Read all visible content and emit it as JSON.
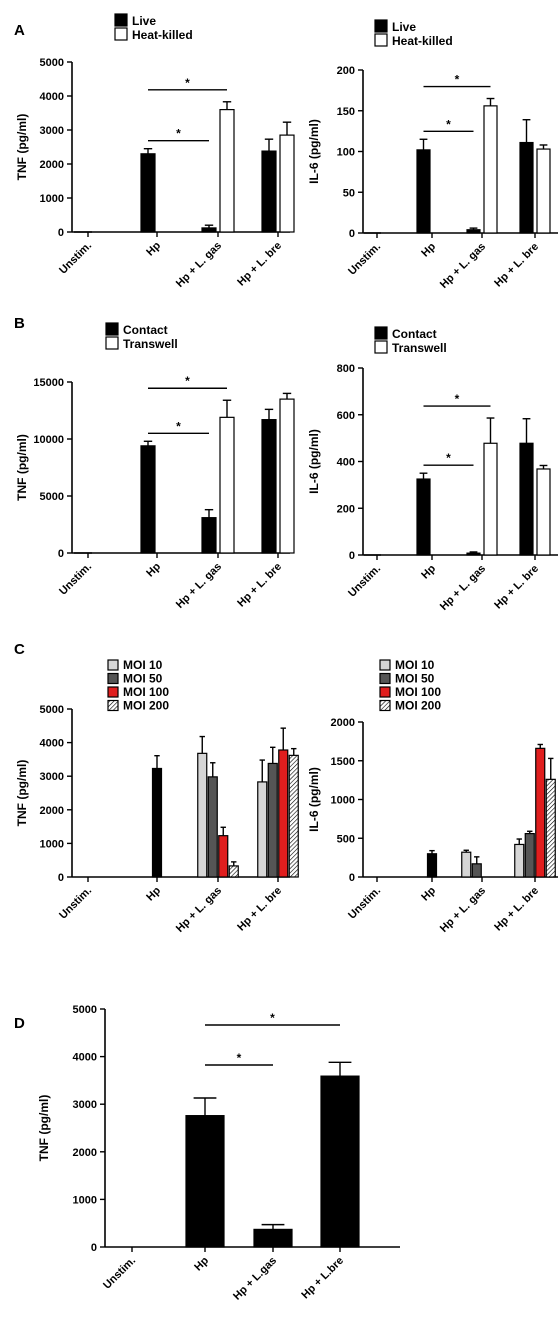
{
  "panel_labels": [
    "A",
    "B",
    "C",
    "D"
  ],
  "colors": {
    "black": "#000000",
    "white": "#ffffff",
    "moi10": "#d6d6d6",
    "moi50": "#555555",
    "moi100": "#e01e1e",
    "moi200": "hatched"
  },
  "chart_data": [
    {
      "panel": "A",
      "type": "bar",
      "ylabel": "TNF (pg/ml)",
      "ylim": [
        0,
        5000
      ],
      "yticks": [
        0,
        1000,
        2000,
        3000,
        4000,
        5000
      ],
      "categories": [
        "Unstim.",
        "Hp",
        "Hp + L. gas",
        "Hp + L. bre"
      ],
      "legend": "top-left",
      "series": [
        {
          "name": "Live",
          "color": "black",
          "values": [
            0,
            2300,
            120,
            2380
          ],
          "errors": [
            0,
            150,
            80,
            350
          ]
        },
        {
          "name": "Heat-killed",
          "color": "white",
          "values": [
            0,
            0,
            3600,
            2850
          ],
          "errors": [
            0,
            0,
            230,
            380
          ]
        }
      ],
      "significance": [
        {
          "from": [
            1,
            0
          ],
          "to": [
            2,
            0
          ],
          "label": "*"
        },
        {
          "from": [
            1,
            0
          ],
          "to": [
            2,
            1
          ],
          "label": "*"
        }
      ]
    },
    {
      "panel": "A",
      "type": "bar",
      "ylabel": "IL-6 (pg/ml)",
      "ylim": [
        0,
        200
      ],
      "yticks": [
        0,
        50,
        100,
        150,
        200
      ],
      "categories": [
        "Unstim.",
        "Hp",
        "Hp + L. gas",
        "Hp + L. bre"
      ],
      "legend": "top-left",
      "series": [
        {
          "name": "Live",
          "color": "black",
          "values": [
            0,
            102,
            4,
            111
          ],
          "errors": [
            0,
            13,
            2,
            28
          ]
        },
        {
          "name": "Heat-killed",
          "color": "white",
          "values": [
            0,
            0,
            156,
            103
          ],
          "errors": [
            0,
            0,
            9,
            5
          ]
        }
      ],
      "significance": [
        {
          "from": [
            1,
            0
          ],
          "to": [
            2,
            0
          ],
          "label": "*"
        },
        {
          "from": [
            1,
            0
          ],
          "to": [
            2,
            1
          ],
          "label": "*"
        }
      ]
    },
    {
      "panel": "B",
      "type": "bar",
      "ylabel": "TNF (pg/ml)",
      "ylim": [
        0,
        15000
      ],
      "yticks": [
        0,
        5000,
        10000,
        15000
      ],
      "categories": [
        "Unstim.",
        "Hp",
        "Hp + L. gas",
        "Hp + L. bre"
      ],
      "legend": "top-left",
      "series": [
        {
          "name": "Contact",
          "color": "black",
          "values": [
            0,
            9400,
            3100,
            11700
          ],
          "errors": [
            80,
            400,
            700,
            900
          ]
        },
        {
          "name": "Transwell",
          "color": "white",
          "values": [
            0,
            0,
            11900,
            13500
          ],
          "errors": [
            0,
            0,
            1500,
            500
          ]
        }
      ],
      "significance": [
        {
          "from": [
            1,
            0
          ],
          "to": [
            2,
            0
          ],
          "label": "*"
        },
        {
          "from": [
            1,
            0
          ],
          "to": [
            2,
            1
          ],
          "label": "*"
        }
      ]
    },
    {
      "panel": "B",
      "type": "bar",
      "ylabel": "IL-6 (pg/ml)",
      "ylim": [
        0,
        800
      ],
      "yticks": [
        0,
        200,
        400,
        600,
        800
      ],
      "categories": [
        "Unstim.",
        "Hp",
        "Hp + L. gas",
        "Hp + L. bre"
      ],
      "legend": "top-left",
      "series": [
        {
          "name": "Contact",
          "color": "black",
          "values": [
            0,
            325,
            8,
            478
          ],
          "errors": [
            0,
            25,
            5,
            105
          ]
        },
        {
          "name": "Transwell",
          "color": "white",
          "values": [
            0,
            0,
            478,
            368
          ],
          "errors": [
            0,
            0,
            108,
            15
          ]
        }
      ],
      "significance": [
        {
          "from": [
            1,
            0
          ],
          "to": [
            2,
            0
          ],
          "label": "*"
        },
        {
          "from": [
            1,
            0
          ],
          "to": [
            2,
            1
          ],
          "label": "*"
        }
      ]
    },
    {
      "panel": "C",
      "type": "bar",
      "ylabel": "TNF (pg/ml)",
      "ylim": [
        0,
        5000
      ],
      "yticks": [
        0,
        1000,
        2000,
        3000,
        4000,
        5000
      ],
      "categories": [
        "Unstim.",
        "Hp",
        "Hp + L. gas",
        "Hp + L. bre"
      ],
      "legend": "top-left",
      "single_bar_categories": [
        0,
        1
      ],
      "series": [
        {
          "name": "MOI 10",
          "color": "moi10",
          "values": [
            null,
            null,
            3680,
            2830
          ],
          "errors": [
            null,
            null,
            500,
            650
          ]
        },
        {
          "name": "MOI 50",
          "color": "moi50",
          "values": [
            null,
            null,
            2980,
            3380
          ],
          "errors": [
            null,
            null,
            420,
            480
          ]
        },
        {
          "name": "MOI 100",
          "color": "moi100",
          "values": [
            null,
            null,
            1230,
            3780
          ],
          "errors": [
            null,
            null,
            250,
            650
          ]
        },
        {
          "name": "MOI 200",
          "color": "moi200",
          "values": [
            null,
            null,
            330,
            3620
          ],
          "errors": [
            null,
            null,
            120,
            200
          ]
        }
      ],
      "single_values": [
        0,
        3230
      ],
      "single_errors": [
        0,
        380
      ]
    },
    {
      "panel": "C",
      "type": "bar",
      "ylabel": "IL-6 (pg/ml)",
      "ylim": [
        0,
        2000
      ],
      "yticks": [
        0,
        500,
        1000,
        1500,
        2000
      ],
      "categories": [
        "Unstim.",
        "Hp",
        "Hp + L. gas",
        "Hp + L. bre"
      ],
      "legend": "top-left",
      "single_bar_categories": [
        0,
        1
      ],
      "series": [
        {
          "name": "MOI 10",
          "color": "moi10",
          "values": [
            null,
            null,
            320,
            420
          ],
          "errors": [
            null,
            null,
            25,
            70
          ]
        },
        {
          "name": "MOI 50",
          "color": "moi50",
          "values": [
            null,
            null,
            170,
            560
          ],
          "errors": [
            null,
            null,
            90,
            30
          ]
        },
        {
          "name": "MOI 100",
          "color": "moi100",
          "values": [
            null,
            null,
            0,
            1660
          ],
          "errors": [
            null,
            null,
            0,
            50
          ]
        },
        {
          "name": "MOI 200",
          "color": "moi200",
          "values": [
            null,
            null,
            0,
            1260
          ],
          "errors": [
            null,
            null,
            0,
            270
          ]
        }
      ],
      "single_values": [
        0,
        300
      ],
      "single_errors": [
        0,
        40
      ]
    },
    {
      "panel": "D",
      "type": "bar",
      "ylabel": "TNF (pg/ml)",
      "ylim": [
        0,
        5000
      ],
      "yticks": [
        0,
        1000,
        2000,
        3000,
        4000,
        5000
      ],
      "categories": [
        "Unstim.",
        "Hp",
        "Hp + L.gas",
        "Hp + L.bre"
      ],
      "series": [
        {
          "name": "",
          "color": "black",
          "values": [
            0,
            2760,
            370,
            3590
          ],
          "errors": [
            0,
            370,
            100,
            290
          ]
        }
      ],
      "significance": [
        {
          "from": [
            1,
            0
          ],
          "to": [
            2,
            0
          ],
          "label": "*"
        },
        {
          "from": [
            1,
            0
          ],
          "to": [
            3,
            0
          ],
          "label": "*"
        }
      ]
    }
  ]
}
